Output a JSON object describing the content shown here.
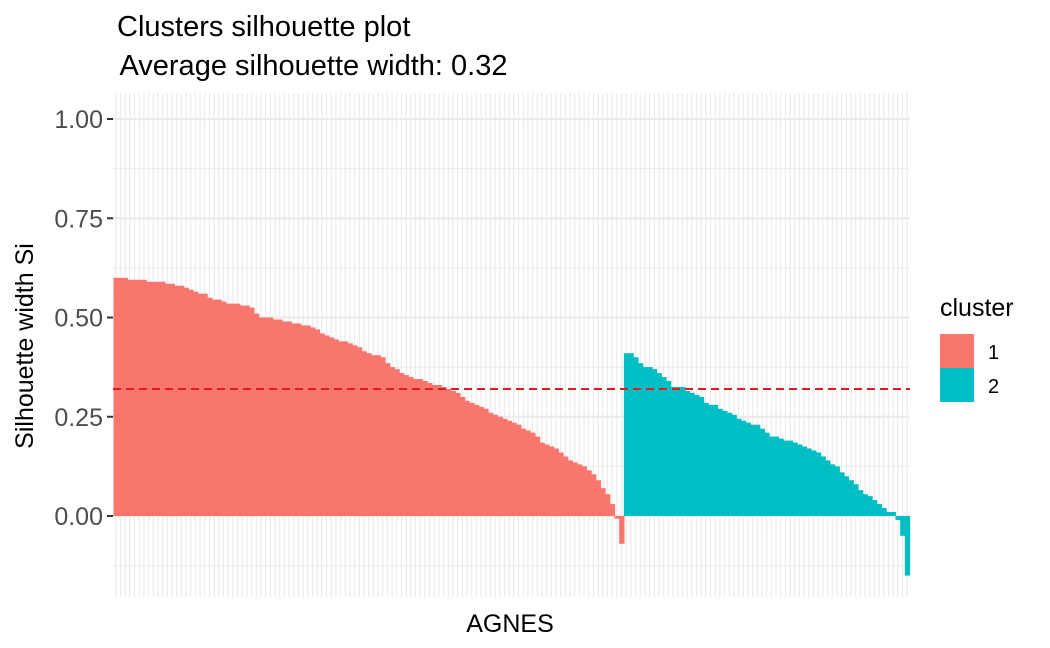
{
  "chart_data": {
    "type": "bar",
    "title": "Clusters silhouette plot",
    "subtitle": " Average silhouette width: 0.32",
    "xlabel": "AGNES",
    "ylabel": "Silhouette width Si",
    "ylim": [
      -0.2,
      1.05
    ],
    "yticks": [
      "0.00",
      "0.25",
      "0.50",
      "0.75",
      "1.00"
    ],
    "ytick_values": [
      0,
      0.25,
      0.5,
      0.75,
      1.0
    ],
    "average_line": 0.32,
    "average_line_color": "#e41a1c",
    "grid": true,
    "legend": {
      "title": "cluster",
      "placement": "right",
      "entries": [
        {
          "label": "1",
          "color": "#F8766D"
        },
        {
          "label": "2",
          "color": "#00BFC4"
        }
      ]
    },
    "series": [
      {
        "name": "1",
        "color": "#F8766D",
        "values": [
          0.6,
          0.6,
          0.6,
          0.595,
          0.595,
          0.595,
          0.595,
          0.59,
          0.59,
          0.59,
          0.59,
          0.585,
          0.585,
          0.58,
          0.58,
          0.575,
          0.57,
          0.565,
          0.56,
          0.56,
          0.55,
          0.545,
          0.545,
          0.54,
          0.535,
          0.535,
          0.535,
          0.53,
          0.53,
          0.525,
          0.51,
          0.5,
          0.5,
          0.5,
          0.495,
          0.495,
          0.49,
          0.49,
          0.485,
          0.485,
          0.48,
          0.48,
          0.475,
          0.47,
          0.46,
          0.455,
          0.45,
          0.445,
          0.44,
          0.44,
          0.435,
          0.43,
          0.425,
          0.415,
          0.41,
          0.405,
          0.405,
          0.4,
          0.385,
          0.375,
          0.37,
          0.36,
          0.355,
          0.35,
          0.345,
          0.345,
          0.34,
          0.335,
          0.33,
          0.33,
          0.325,
          0.32,
          0.315,
          0.31,
          0.3,
          0.29,
          0.285,
          0.28,
          0.275,
          0.27,
          0.26,
          0.255,
          0.25,
          0.245,
          0.24,
          0.235,
          0.23,
          0.22,
          0.215,
          0.21,
          0.2,
          0.185,
          0.18,
          0.175,
          0.17,
          0.16,
          0.15,
          0.14,
          0.135,
          0.13,
          0.125,
          0.115,
          0.105,
          0.09,
          0.07,
          0.055,
          0.03,
          -0.007,
          -0.07
        ]
      },
      {
        "name": "2",
        "color": "#00BFC4",
        "values": [
          0.41,
          0.41,
          0.4,
          0.385,
          0.375,
          0.375,
          0.37,
          0.36,
          0.35,
          0.34,
          0.325,
          0.325,
          0.325,
          0.315,
          0.31,
          0.305,
          0.3,
          0.285,
          0.28,
          0.28,
          0.27,
          0.265,
          0.26,
          0.255,
          0.245,
          0.24,
          0.235,
          0.23,
          0.23,
          0.22,
          0.21,
          0.2,
          0.2,
          0.195,
          0.19,
          0.19,
          0.185,
          0.18,
          0.175,
          0.17,
          0.165,
          0.16,
          0.15,
          0.14,
          0.13,
          0.125,
          0.11,
          0.1,
          0.09,
          0.08,
          0.065,
          0.055,
          0.05,
          0.04,
          0.03,
          0.02,
          0.01,
          0.01,
          -0.01,
          -0.05,
          -0.15
        ]
      }
    ]
  }
}
